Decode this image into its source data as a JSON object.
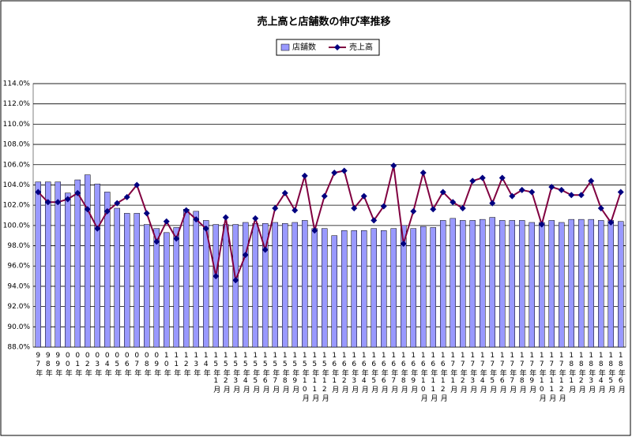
{
  "chart_data": {
    "type": "bar-line",
    "title": "売上高と店舗数の伸び率推移",
    "categories": [
      "97年",
      "98年",
      "99年",
      "00年",
      "01年",
      "02年",
      "03年",
      "04年",
      "05年",
      "06年",
      "07年",
      "08年",
      "09年",
      "10年",
      "11年",
      "12年",
      "13年",
      "14年",
      "15年1月",
      "15年2月",
      "15年3月",
      "15年4月",
      "15年5月",
      "15年6月",
      "15年7月",
      "15年8月",
      "15年9月",
      "15年10月",
      "15年11月",
      "15年12月",
      "16年1月",
      "16年2月",
      "16年3月",
      "16年4月",
      "16年5月",
      "16年6月",
      "16年7月",
      "16年8月",
      "16年9月",
      "16年10月",
      "16年11月",
      "16年12月",
      "17年1月",
      "17年2月",
      "17年3月",
      "17年4月",
      "17年5月",
      "17年6月",
      "17年7月",
      "17年8月",
      "17年9月",
      "17年10月",
      "17年11月",
      "17年12月",
      "18年1月",
      "18年2月",
      "18年3月",
      "18年4月",
      "18年5月",
      "18年6月"
    ],
    "series": [
      {
        "name": "店舗数",
        "kind": "bar",
        "color": "#9999ff",
        "values": [
          104.3,
          104.3,
          104.3,
          103.2,
          104.5,
          105.0,
          104.1,
          103.3,
          101.7,
          101.2,
          101.2,
          100.1,
          99.7,
          99.3,
          99.8,
          101.6,
          101.4,
          100.5,
          100.1,
          100.1,
          100.1,
          100.3,
          100.2,
          100.2,
          100.3,
          100.2,
          100.3,
          100.5,
          99.7,
          99.7,
          99.0,
          99.5,
          99.5,
          99.5,
          99.7,
          99.5,
          99.7,
          100.0,
          99.7,
          99.9,
          99.8,
          100.5,
          100.7,
          100.5,
          100.5,
          100.6,
          100.8,
          100.5,
          100.5,
          100.5,
          100.3,
          100.3,
          100.5,
          100.3,
          100.6,
          100.6,
          100.6,
          100.5,
          100.5,
          100.4
        ]
      },
      {
        "name": "売上高",
        "kind": "line",
        "color": "#800040",
        "marker_color": "#000080",
        "values": [
          103.3,
          102.3,
          102.3,
          102.6,
          103.2,
          101.6,
          99.7,
          101.4,
          102.2,
          102.8,
          104.0,
          101.2,
          98.4,
          100.4,
          98.7,
          101.5,
          100.6,
          99.7,
          95.0,
          100.8,
          94.6,
          97.1,
          100.7,
          97.6,
          101.7,
          103.2,
          101.5,
          104.9,
          99.5,
          102.9,
          105.2,
          105.4,
          101.7,
          102.9,
          100.5,
          101.9,
          105.9,
          98.2,
          101.4,
          105.2,
          101.6,
          103.3,
          102.3,
          101.7,
          104.4,
          104.7,
          102.2,
          104.7,
          102.9,
          103.5,
          103.3,
          100.1,
          103.8,
          103.5,
          103.0,
          103.0,
          104.4,
          101.7,
          100.3,
          103.3
        ]
      }
    ],
    "ylim": [
      88,
      114
    ],
    "yticks": [
      {
        "value": 88,
        "label": "88.0%"
      },
      {
        "value": 90,
        "label": "90.0%"
      },
      {
        "value": 92,
        "label": "92.0%"
      },
      {
        "value": 94,
        "label": "94.0%"
      },
      {
        "value": 96,
        "label": "96.0%"
      },
      {
        "value": 98,
        "label": "98.0%"
      },
      {
        "value": 100,
        "label": "100.0%"
      },
      {
        "value": 102,
        "label": "102.0%"
      },
      {
        "value": 104,
        "label": "104.0%"
      },
      {
        "value": 106,
        "label": "106.0%"
      },
      {
        "value": 108,
        "label": "108.0%"
      },
      {
        "value": 110,
        "label": "110.0%"
      },
      {
        "value": 112,
        "label": "112.0%"
      },
      {
        "value": 114,
        "label": "114.0%"
      }
    ],
    "grid": true,
    "legend": "top"
  }
}
